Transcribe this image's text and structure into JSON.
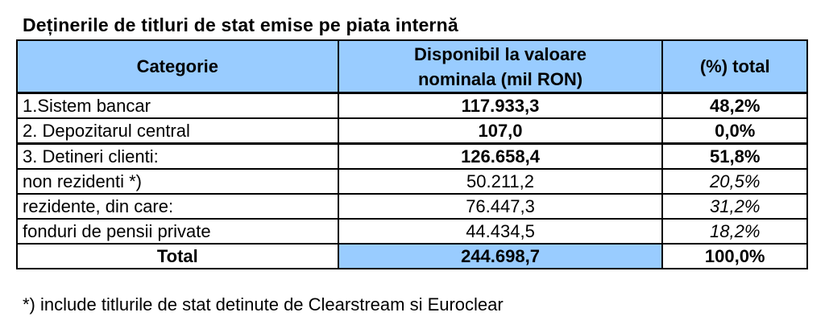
{
  "title": "Deținerile de titluri de stat emise pe piata internă",
  "headers": {
    "category": "Categorie",
    "value_line1": "Disponibil la valoare",
    "value_line2": "nominala (mil RON)",
    "percent": "(%) total"
  },
  "rows": [
    {
      "category": "1.Sistem bancar",
      "value": "117.933,3",
      "percent": "48,2%"
    },
    {
      "category": "2. Depozitarul central",
      "value": "107,0",
      "percent": "0,0%"
    },
    {
      "category": "3. Detineri clienti:",
      "value": "126.658,4",
      "percent": "51,8%"
    },
    {
      "category": "non rezidenti *)",
      "value": "50.211,2",
      "percent": "20,5%"
    },
    {
      "category": "rezidente, din care:",
      "value": "76.447,3",
      "percent": "31,2%"
    },
    {
      "category": "fonduri de pensii private",
      "value": "44.434,5",
      "percent": "18,2%"
    }
  ],
  "total": {
    "category": "Total",
    "value": "244.698,7",
    "percent": "100,0%"
  },
  "footnote": "*) include titlurile de stat detinute de Clearstream si Euroclear",
  "colors": {
    "header_bg": "#99ccff",
    "border": "#000000"
  }
}
